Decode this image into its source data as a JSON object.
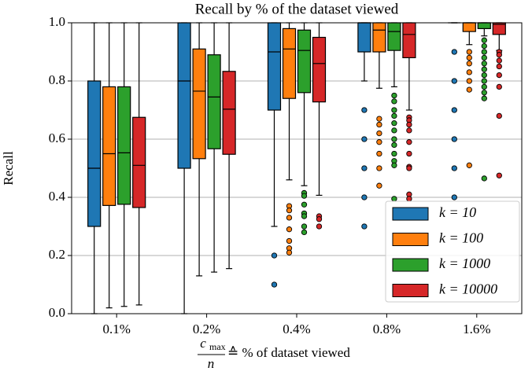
{
  "chart_data": {
    "type": "box",
    "title": "Recall by % of the dataset viewed",
    "ylabel": "Recall",
    "xlabel": {
      "numerator": "c",
      "subscript": "max",
      "denominator": "n",
      "text": "≙ % of dataset viewed"
    },
    "categories": [
      "0.1%",
      "0.2%",
      "0.4%",
      "0.8%",
      "1.6%"
    ],
    "ylim": [
      0,
      1
    ],
    "yticks": [
      {
        "value": 0,
        "label": "0.0"
      },
      0.2,
      0.4,
      0.6,
      0.8,
      {
        "value": 1,
        "label": "1.0"
      }
    ],
    "grid": true,
    "legend": "lower right",
    "series": [
      {
        "name": "k = 10",
        "color": "#1f77b4",
        "values": [
          {
            "low": 0,
            "q1": 0.3,
            "median": 0.5,
            "q3": 0.8,
            "high": 1.0,
            "outliers": []
          },
          {
            "low": 0,
            "q1": 0.5,
            "median": 0.8,
            "q3": 1.0,
            "high": 1.0,
            "outliers": []
          },
          {
            "low": 0.3,
            "q1": 0.7,
            "median": 0.9,
            "q3": 1.0,
            "high": 1.0,
            "outliers": [
              0.2,
              0.1
            ]
          },
          {
            "low": 0.8,
            "q1": 0.9,
            "median": 1.0,
            "q3": 1.0,
            "high": 1.0,
            "outliers": [
              0.7,
              0.6,
              0.5,
              0.4,
              0.3
            ]
          },
          {
            "low": 1.0,
            "q1": 1.0,
            "median": 1.0,
            "q3": 1.0,
            "high": 1.0,
            "outliers": [
              0.9,
              0.8,
              0.7,
              0.6,
              0.5,
              0.4
            ]
          }
        ]
      },
      {
        "name": "k = 100",
        "color": "#ff7f0e",
        "values": [
          {
            "low": 0.02,
            "q1": 0.372,
            "median": 0.55,
            "q3": 0.78,
            "high": 1.0,
            "outliers": []
          },
          {
            "low": 0.13,
            "q1": 0.533,
            "median": 0.765,
            "q3": 0.91,
            "high": 1.0,
            "outliers": []
          },
          {
            "low": 0.46,
            "q1": 0.74,
            "median": 0.91,
            "q3": 0.98,
            "high": 1.0,
            "outliers": [
              0.37,
              0.355,
              0.33,
              0.29,
              0.25,
              0.225,
              0.21
            ]
          },
          {
            "low": 0.775,
            "q1": 0.9,
            "median": 0.975,
            "q3": 1.0,
            "high": 1.0,
            "outliers": [
              0.67,
              0.65,
              0.62,
              0.59,
              0.55,
              0.5,
              0.44
            ]
          },
          {
            "low": 0.925,
            "q1": 0.97,
            "median": 1.0,
            "q3": 1.0,
            "high": 1.0,
            "outliers": [
              0.9,
              0.88,
              0.86,
              0.83,
              0.8,
              0.77,
              0.51
            ]
          }
        ]
      },
      {
        "name": "k = 1000",
        "color": "#2ca02c",
        "values": [
          {
            "low": 0.025,
            "q1": 0.376,
            "median": 0.553,
            "q3": 0.78,
            "high": 1.0,
            "outliers": []
          },
          {
            "low": 0.143,
            "q1": 0.567,
            "median": 0.745,
            "q3": 0.89,
            "high": 1.0,
            "outliers": []
          },
          {
            "low": 0.44,
            "q1": 0.76,
            "median": 0.905,
            "q3": 0.975,
            "high": 1.0,
            "outliers": [
              0.415,
              0.405,
              0.375,
              0.345,
              0.335,
              0.3,
              0.28
            ]
          },
          {
            "low": 0.78,
            "q1": 0.905,
            "median": 0.97,
            "q3": 1.0,
            "high": 1.0,
            "outliers": [
              0.75,
              0.73,
              0.7,
              0.68,
              0.655,
              0.63,
              0.6,
              0.58,
              0.55,
              0.525,
              0.51,
              0.395
            ]
          },
          {
            "low": 0.955,
            "q1": 0.98,
            "median": 1.0,
            "q3": 1.0,
            "high": 1.0,
            "outliers": [
              0.94,
              0.92,
              0.9,
              0.88,
              0.86,
              0.84,
              0.82,
              0.8,
              0.78,
              0.76,
              0.74,
              0.465
            ]
          }
        ]
      },
      {
        "name": "k = 10000",
        "color": "#d62728",
        "values": [
          {
            "low": 0.03,
            "q1": 0.365,
            "median": 0.51,
            "q3": 0.675,
            "high": 1.0,
            "outliers": []
          },
          {
            "low": 0.155,
            "q1": 0.548,
            "median": 0.703,
            "q3": 0.833,
            "high": 1.0,
            "outliers": []
          },
          {
            "low": 0.407,
            "q1": 0.728,
            "median": 0.86,
            "q3": 0.95,
            "high": 1.0,
            "outliers": [
              0.335,
              0.325,
              0.3
            ]
          },
          {
            "low": 0.7,
            "q1": 0.88,
            "median": 0.96,
            "q3": 1.0,
            "high": 1.0,
            "outliers": [
              0.675,
              0.665,
              0.65,
              0.63,
              0.59,
              0.55,
              0.505,
              0.5,
              0.41,
              0.395
            ]
          },
          {
            "low": 0.905,
            "q1": 0.96,
            "median": 0.995,
            "q3": 1.0,
            "high": 1.0,
            "outliers": [
              0.9,
              0.89,
              0.87,
              0.85,
              0.82,
              0.78,
              0.68,
              0.475
            ]
          }
        ]
      }
    ]
  }
}
